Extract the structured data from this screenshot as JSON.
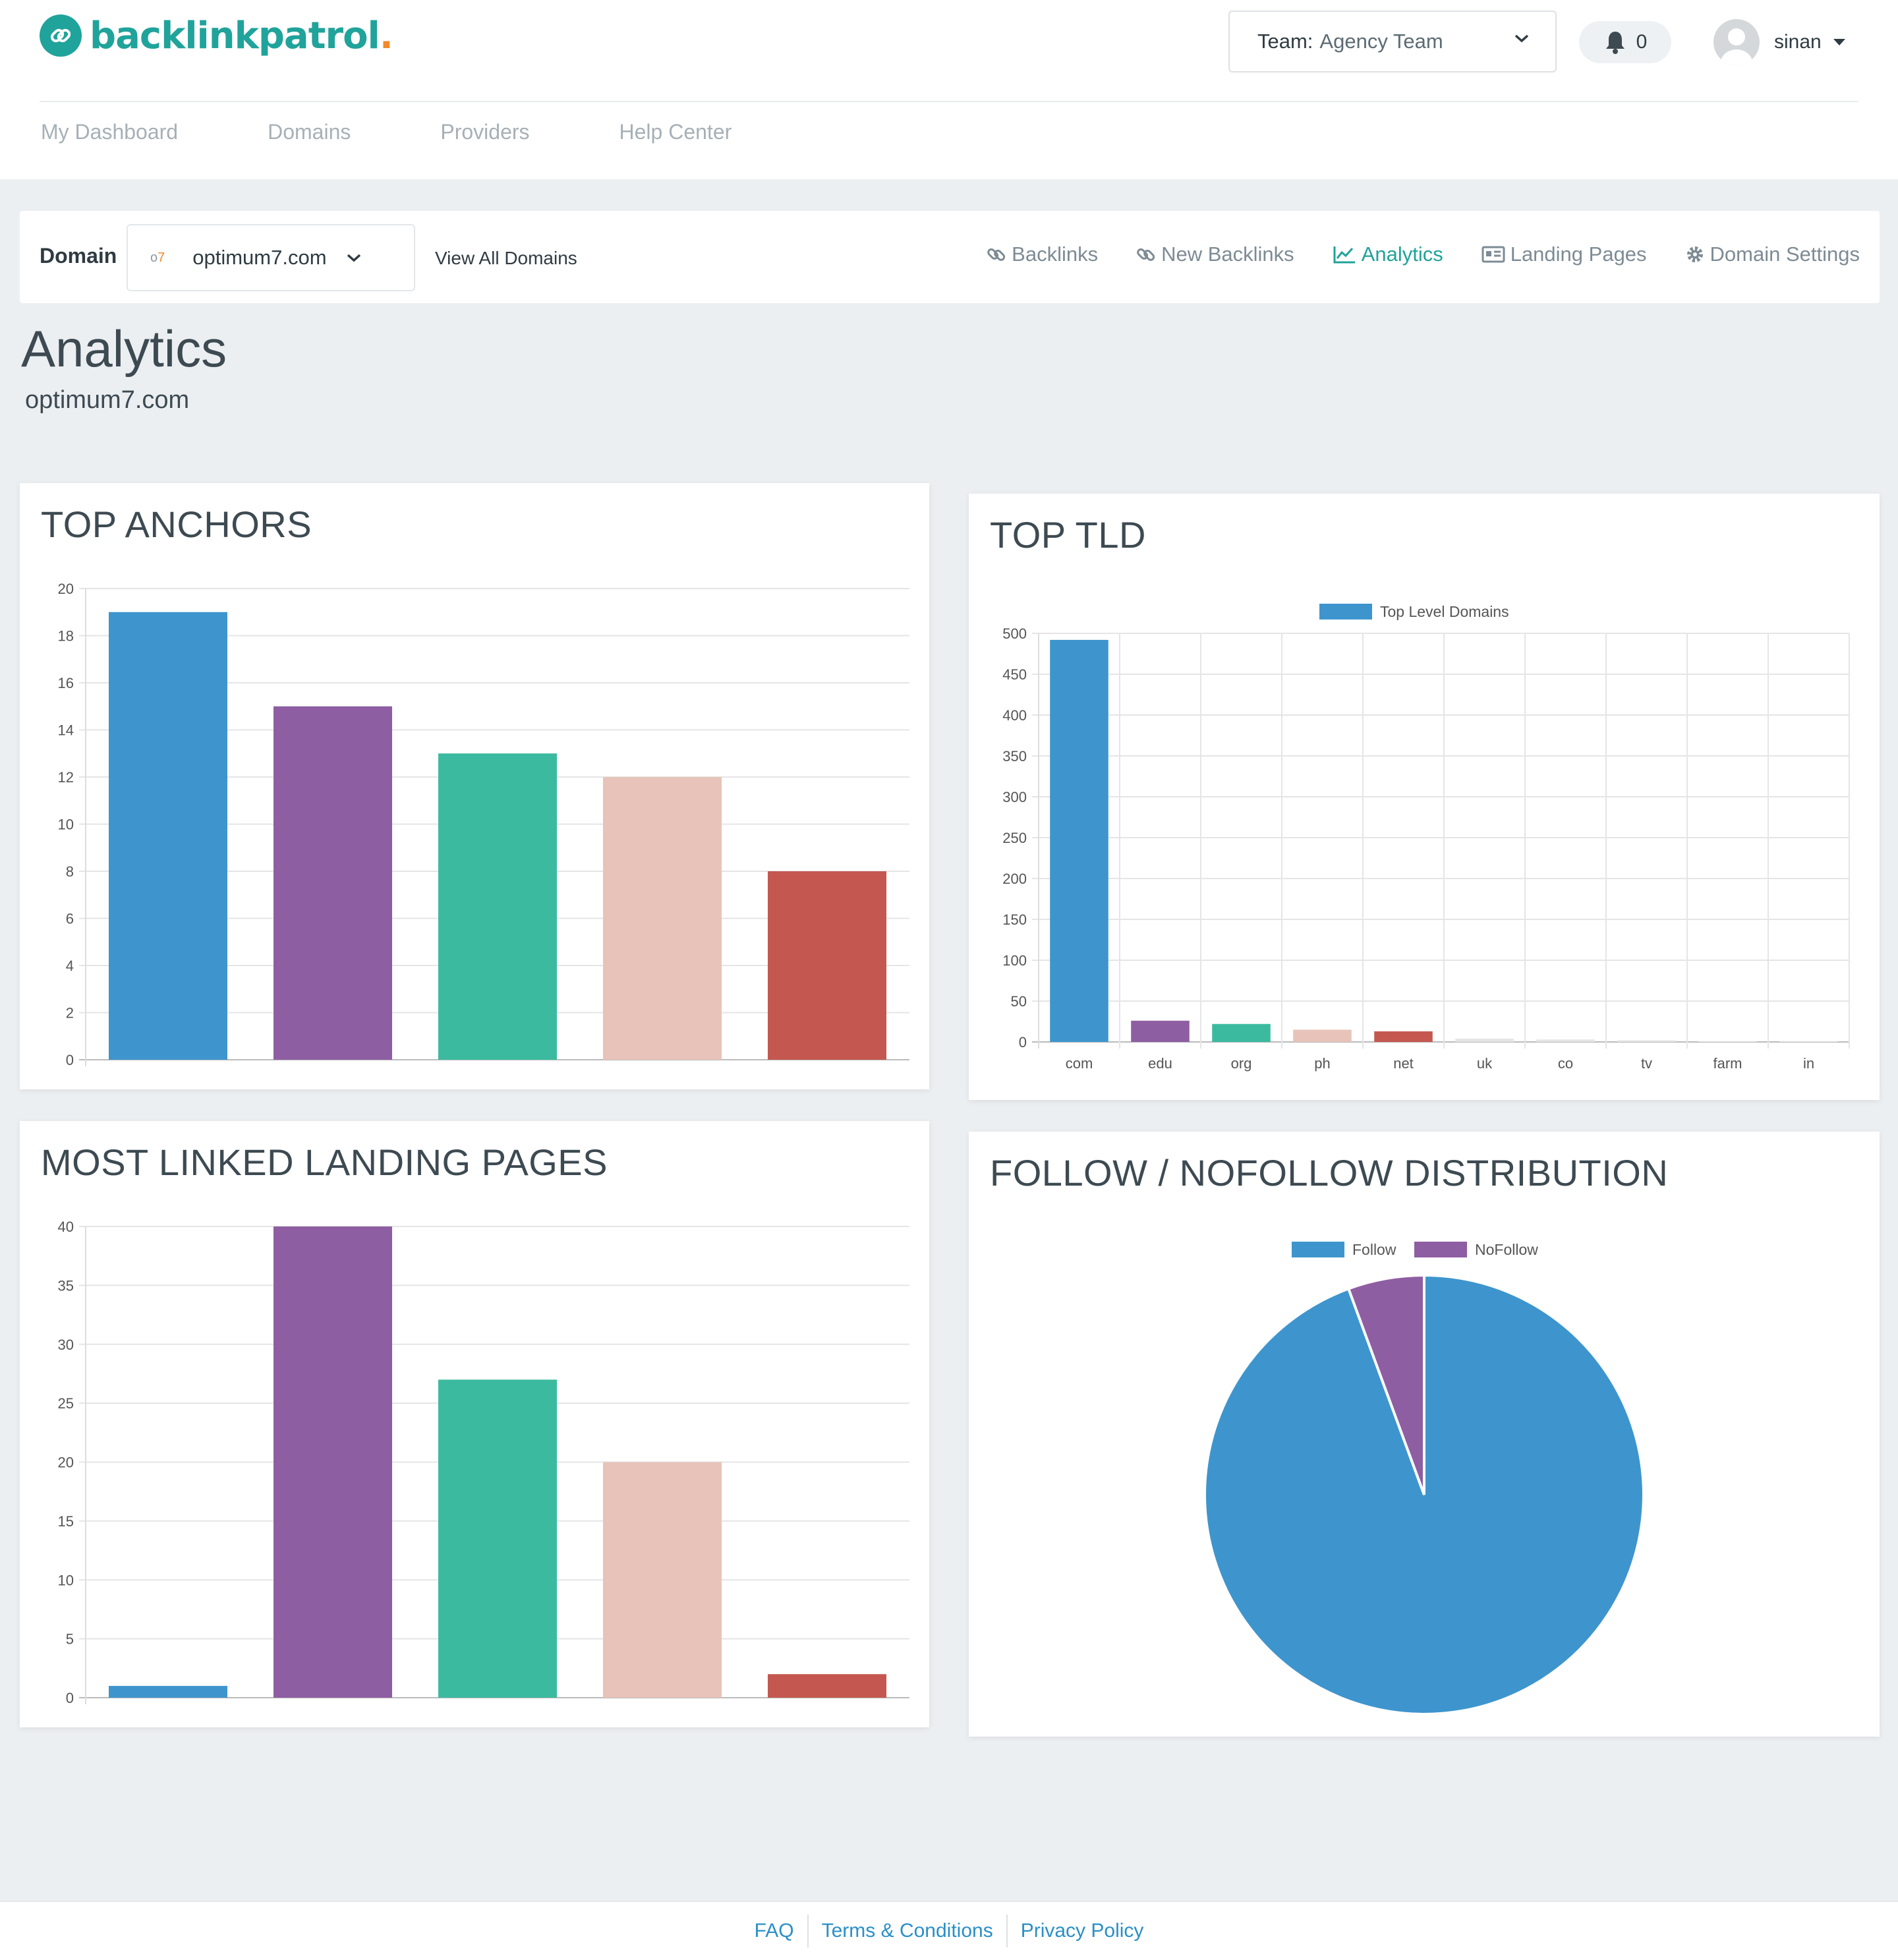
{
  "app": {
    "name": "backlinkpatrol",
    "name_dot": "."
  },
  "header": {
    "team_label": "Team:",
    "team_value": "Agency Team",
    "notifications_count": "0",
    "username": "sinan"
  },
  "nav": {
    "items": [
      {
        "label": "My Dashboard"
      },
      {
        "label": "Domains"
      },
      {
        "label": "Providers"
      },
      {
        "label": "Help Center"
      }
    ]
  },
  "domain_bar": {
    "label": "Domain",
    "favicon_text_a": "o",
    "favicon_text_b": "7",
    "selected_domain": "optimum7.com",
    "view_all": "View All Domains",
    "tabs": [
      {
        "label": "Backlinks",
        "icon": "link-icon"
      },
      {
        "label": "New Backlinks",
        "icon": "link-icon"
      },
      {
        "label": "Analytics",
        "icon": "line-chart-icon",
        "active": true
      },
      {
        "label": "Landing Pages",
        "icon": "id-card-icon"
      },
      {
        "label": "Domain Settings",
        "icon": "gear-icon"
      }
    ]
  },
  "page": {
    "title": "Analytics",
    "subtitle": "optimum7.com"
  },
  "colors": {
    "accent": "#1fa39a",
    "palette": [
      "#3e95cd",
      "#8e5ea2",
      "#3cba9f",
      "#e8c3b9",
      "#c45850"
    ]
  },
  "chart_data": [
    {
      "type": "bar",
      "title": "TOP ANCHORS",
      "categories": [
        "",
        "",
        "",
        "",
        ""
      ],
      "values": [
        19,
        15,
        13,
        12,
        8
      ],
      "ylim": [
        0,
        20
      ],
      "yticks": [
        0,
        2,
        4,
        6,
        8,
        10,
        12,
        14,
        16,
        18,
        20
      ],
      "grid": true,
      "legend": "none"
    },
    {
      "type": "bar",
      "title": "TOP TLD",
      "categories": [
        "com",
        "edu",
        "org",
        "ph",
        "net",
        "uk",
        "co",
        "tv",
        "farm",
        "in"
      ],
      "series": [
        {
          "name": "Top Level Domains",
          "values": [
            492,
            26,
            22,
            15,
            13,
            4,
            3,
            2,
            1,
            1
          ]
        }
      ],
      "ylim": [
        0,
        500
      ],
      "yticks": [
        0,
        50,
        100,
        150,
        200,
        250,
        300,
        350,
        400,
        450,
        500
      ],
      "grid": true,
      "legend": "top-center"
    },
    {
      "type": "bar",
      "title": "MOST LINKED LANDING PAGES",
      "categories": [
        "",
        "",
        "",
        "",
        ""
      ],
      "values": [
        1,
        40,
        27,
        20,
        2
      ],
      "ylim": [
        0,
        40
      ],
      "yticks": [
        0,
        5,
        10,
        15,
        20,
        25,
        30,
        35,
        40
      ],
      "grid": true,
      "legend": "none"
    },
    {
      "type": "pie",
      "title": "FOLLOW / NOFOLLOW DISTRIBUTION",
      "labels": [
        "Follow",
        "NoFollow"
      ],
      "values": [
        94.4,
        5.6
      ],
      "legend": "top-center"
    }
  ],
  "footer": {
    "links": [
      "FAQ",
      "Terms & Conditions",
      "Privacy Policy"
    ]
  }
}
